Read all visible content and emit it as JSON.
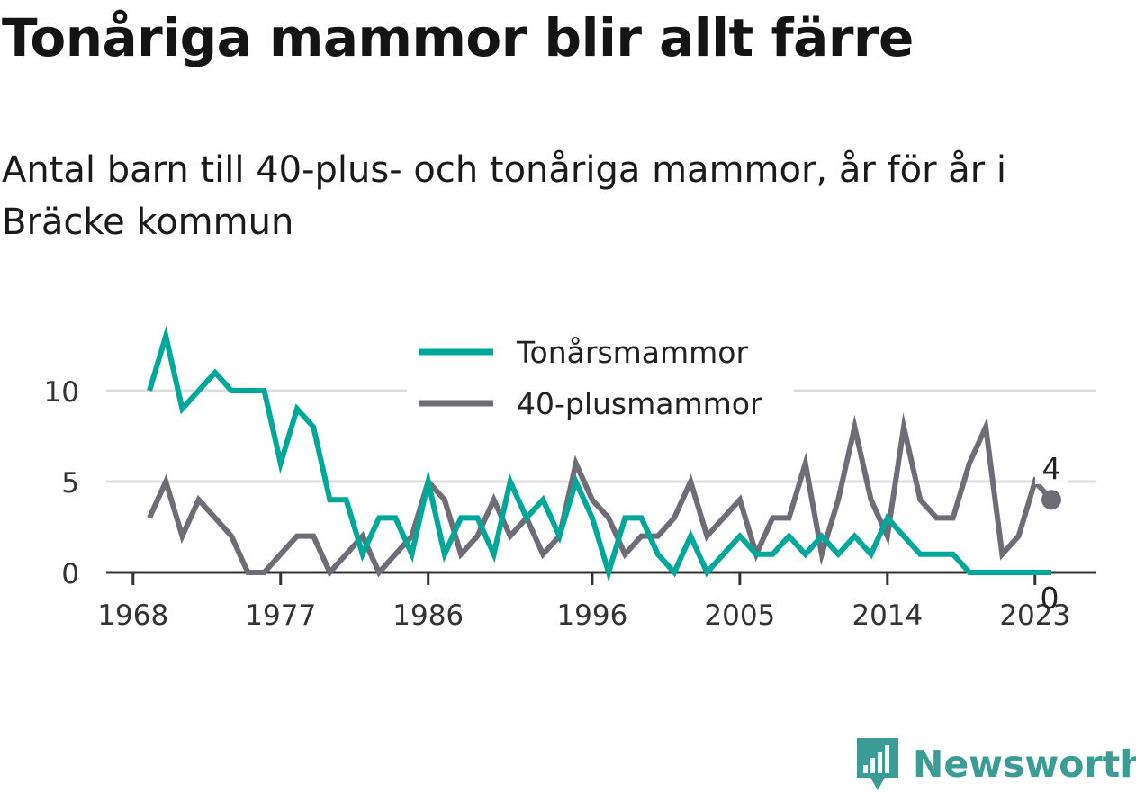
{
  "title": "Tonåriga mammor blir allt färre",
  "subtitle": "Antal barn till 40-plus- och tonåriga mammor, år för år i Bräcke kommun",
  "brand": {
    "name": "Newsworthy",
    "icon": "newsworthy-logo-icon",
    "color": "#3a9c95"
  },
  "chart_data": {
    "type": "line",
    "x": [
      1969,
      1970,
      1971,
      1972,
      1973,
      1974,
      1975,
      1976,
      1977,
      1978,
      1979,
      1980,
      1981,
      1982,
      1983,
      1984,
      1985,
      1986,
      1987,
      1988,
      1989,
      1990,
      1991,
      1992,
      1993,
      1994,
      1995,
      1996,
      1997,
      1998,
      1999,
      2000,
      2001,
      2002,
      2003,
      2004,
      2005,
      2006,
      2007,
      2008,
      2009,
      2010,
      2011,
      2012,
      2013,
      2014,
      2015,
      2016,
      2017,
      2018,
      2019,
      2020,
      2021,
      2022,
      2023,
      2024
    ],
    "series": [
      {
        "name": "Tonårsmammor",
        "color": "#00a89a",
        "values": [
          10,
          13,
          9,
          10,
          11,
          10,
          10,
          10,
          6,
          9,
          8,
          4,
          4,
          1,
          3,
          3,
          1,
          5,
          1,
          3,
          3,
          1,
          5,
          3,
          4,
          2,
          5,
          3,
          0,
          3,
          3,
          1,
          0,
          2,
          0,
          1,
          2,
          1,
          1,
          2,
          1,
          2,
          1,
          2,
          1,
          3,
          2,
          1,
          1,
          1,
          0,
          0,
          0,
          0,
          0,
          0
        ]
      },
      {
        "name": "40-plusmammor",
        "color": "#6e6d75",
        "values": [
          3,
          5,
          2,
          4,
          3,
          2,
          0,
          0,
          1,
          2,
          2,
          0,
          1,
          2,
          0,
          1,
          2,
          5,
          4,
          1,
          2,
          4,
          2,
          3,
          1,
          2,
          6,
          4,
          3,
          1,
          2,
          2,
          3,
          5,
          2,
          3,
          4,
          1,
          3,
          3,
          6,
          1,
          4,
          8,
          4,
          2,
          8,
          4,
          3,
          3,
          6,
          8,
          1,
          2,
          5,
          4
        ]
      }
    ],
    "end_labels": [
      "4",
      "0"
    ],
    "x_ticks": [
      "1968",
      "1977",
      "1986",
      "1996",
      "2005",
      "2014",
      "2023"
    ],
    "y_ticks": [
      "0",
      "5",
      "10"
    ],
    "ylim": [
      0,
      13
    ],
    "grid": true,
    "legend": "top-center"
  }
}
